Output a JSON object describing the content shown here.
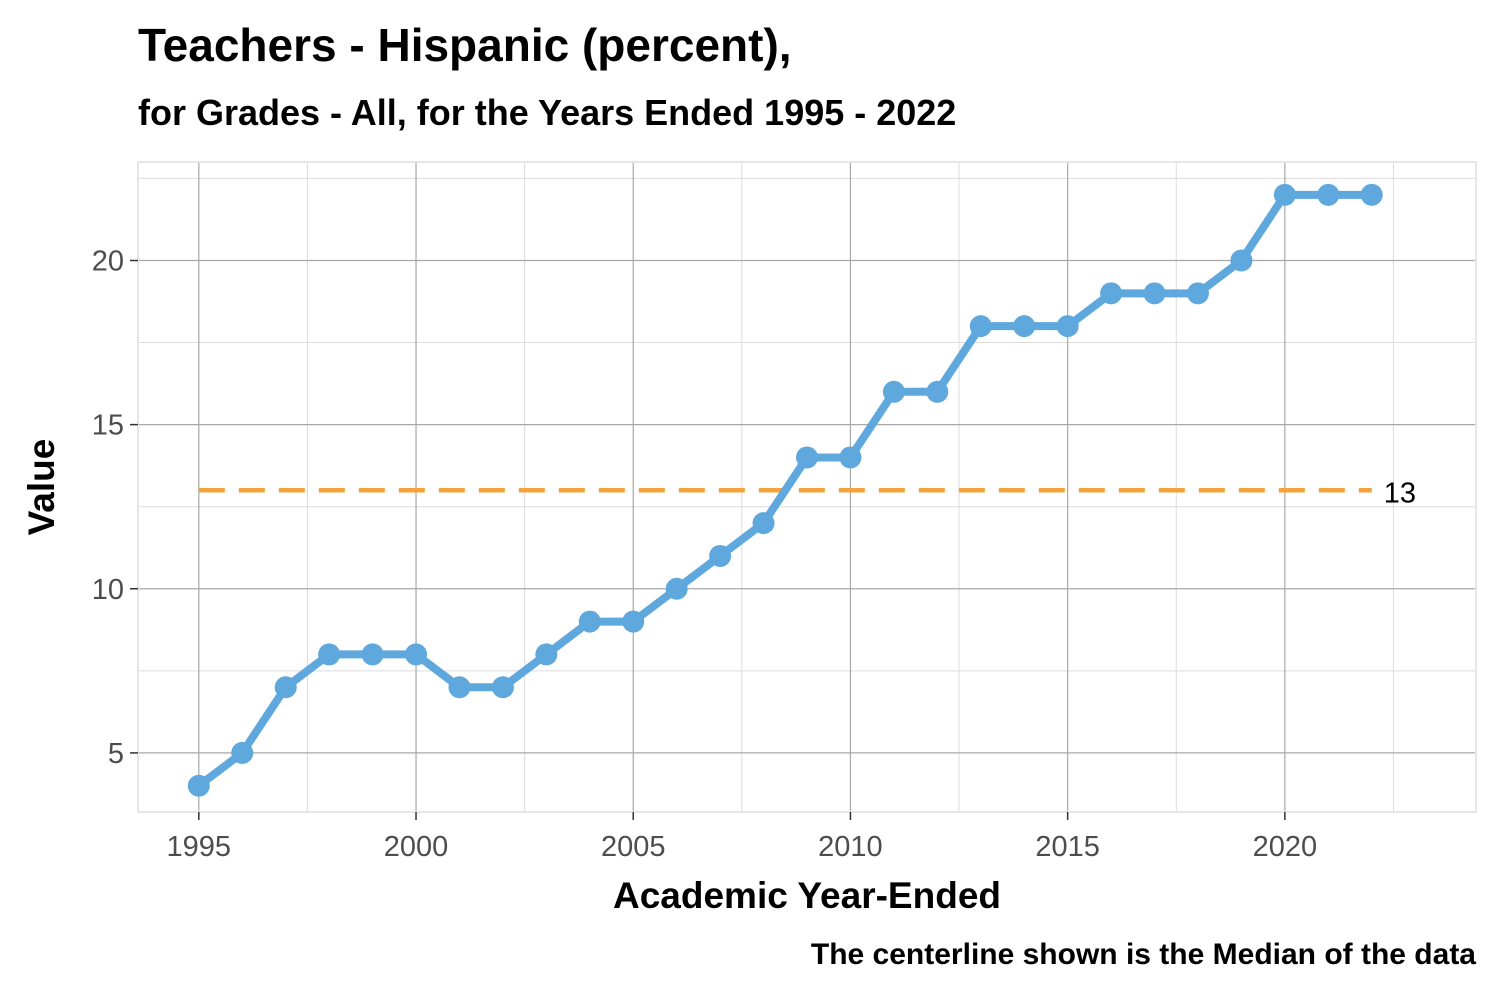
{
  "chart_data": {
    "type": "line",
    "title": "Teachers - Hispanic (percent),",
    "subtitle": "for Grades - All, for the Years Ended 1995  -  2022",
    "xlabel": "Academic Year-Ended",
    "ylabel": "Value",
    "caption": "The centerline shown is the Median of the data",
    "x": [
      1995,
      1996,
      1997,
      1998,
      1999,
      2000,
      2001,
      2002,
      2003,
      2004,
      2005,
      2006,
      2007,
      2008,
      2009,
      2010,
      2011,
      2012,
      2013,
      2014,
      2015,
      2016,
      2017,
      2018,
      2019,
      2020,
      2021,
      2022
    ],
    "series": [
      {
        "values": [
          4,
          5,
          7,
          8,
          8,
          8,
          7,
          7,
          8,
          9,
          9,
          10,
          11,
          12,
          14,
          14,
          16,
          16,
          18,
          18,
          18,
          19,
          19,
          19,
          20,
          22,
          22,
          22
        ]
      }
    ],
    "median": 13,
    "median_label": "13",
    "xlim": [
      1993.6,
      2024.4
    ],
    "ylim": [
      3.2,
      23.0
    ],
    "x_ticks": [
      1995,
      2000,
      2005,
      2010,
      2015,
      2020
    ],
    "x_tick_labels": [
      "1995",
      "2000",
      "2005",
      "2010",
      "2015",
      "2020"
    ],
    "y_ticks": [
      5,
      10,
      15,
      20
    ],
    "y_tick_labels": [
      "5",
      "10",
      "15",
      "20"
    ],
    "grid": true,
    "legend": "none",
    "colors": {
      "line": "#5fa8de",
      "median": "#f5a13c",
      "grid_major": "#a8a8a8",
      "grid_minor": "#dcdcdc",
      "panel_border": "#e6e6e6"
    }
  }
}
